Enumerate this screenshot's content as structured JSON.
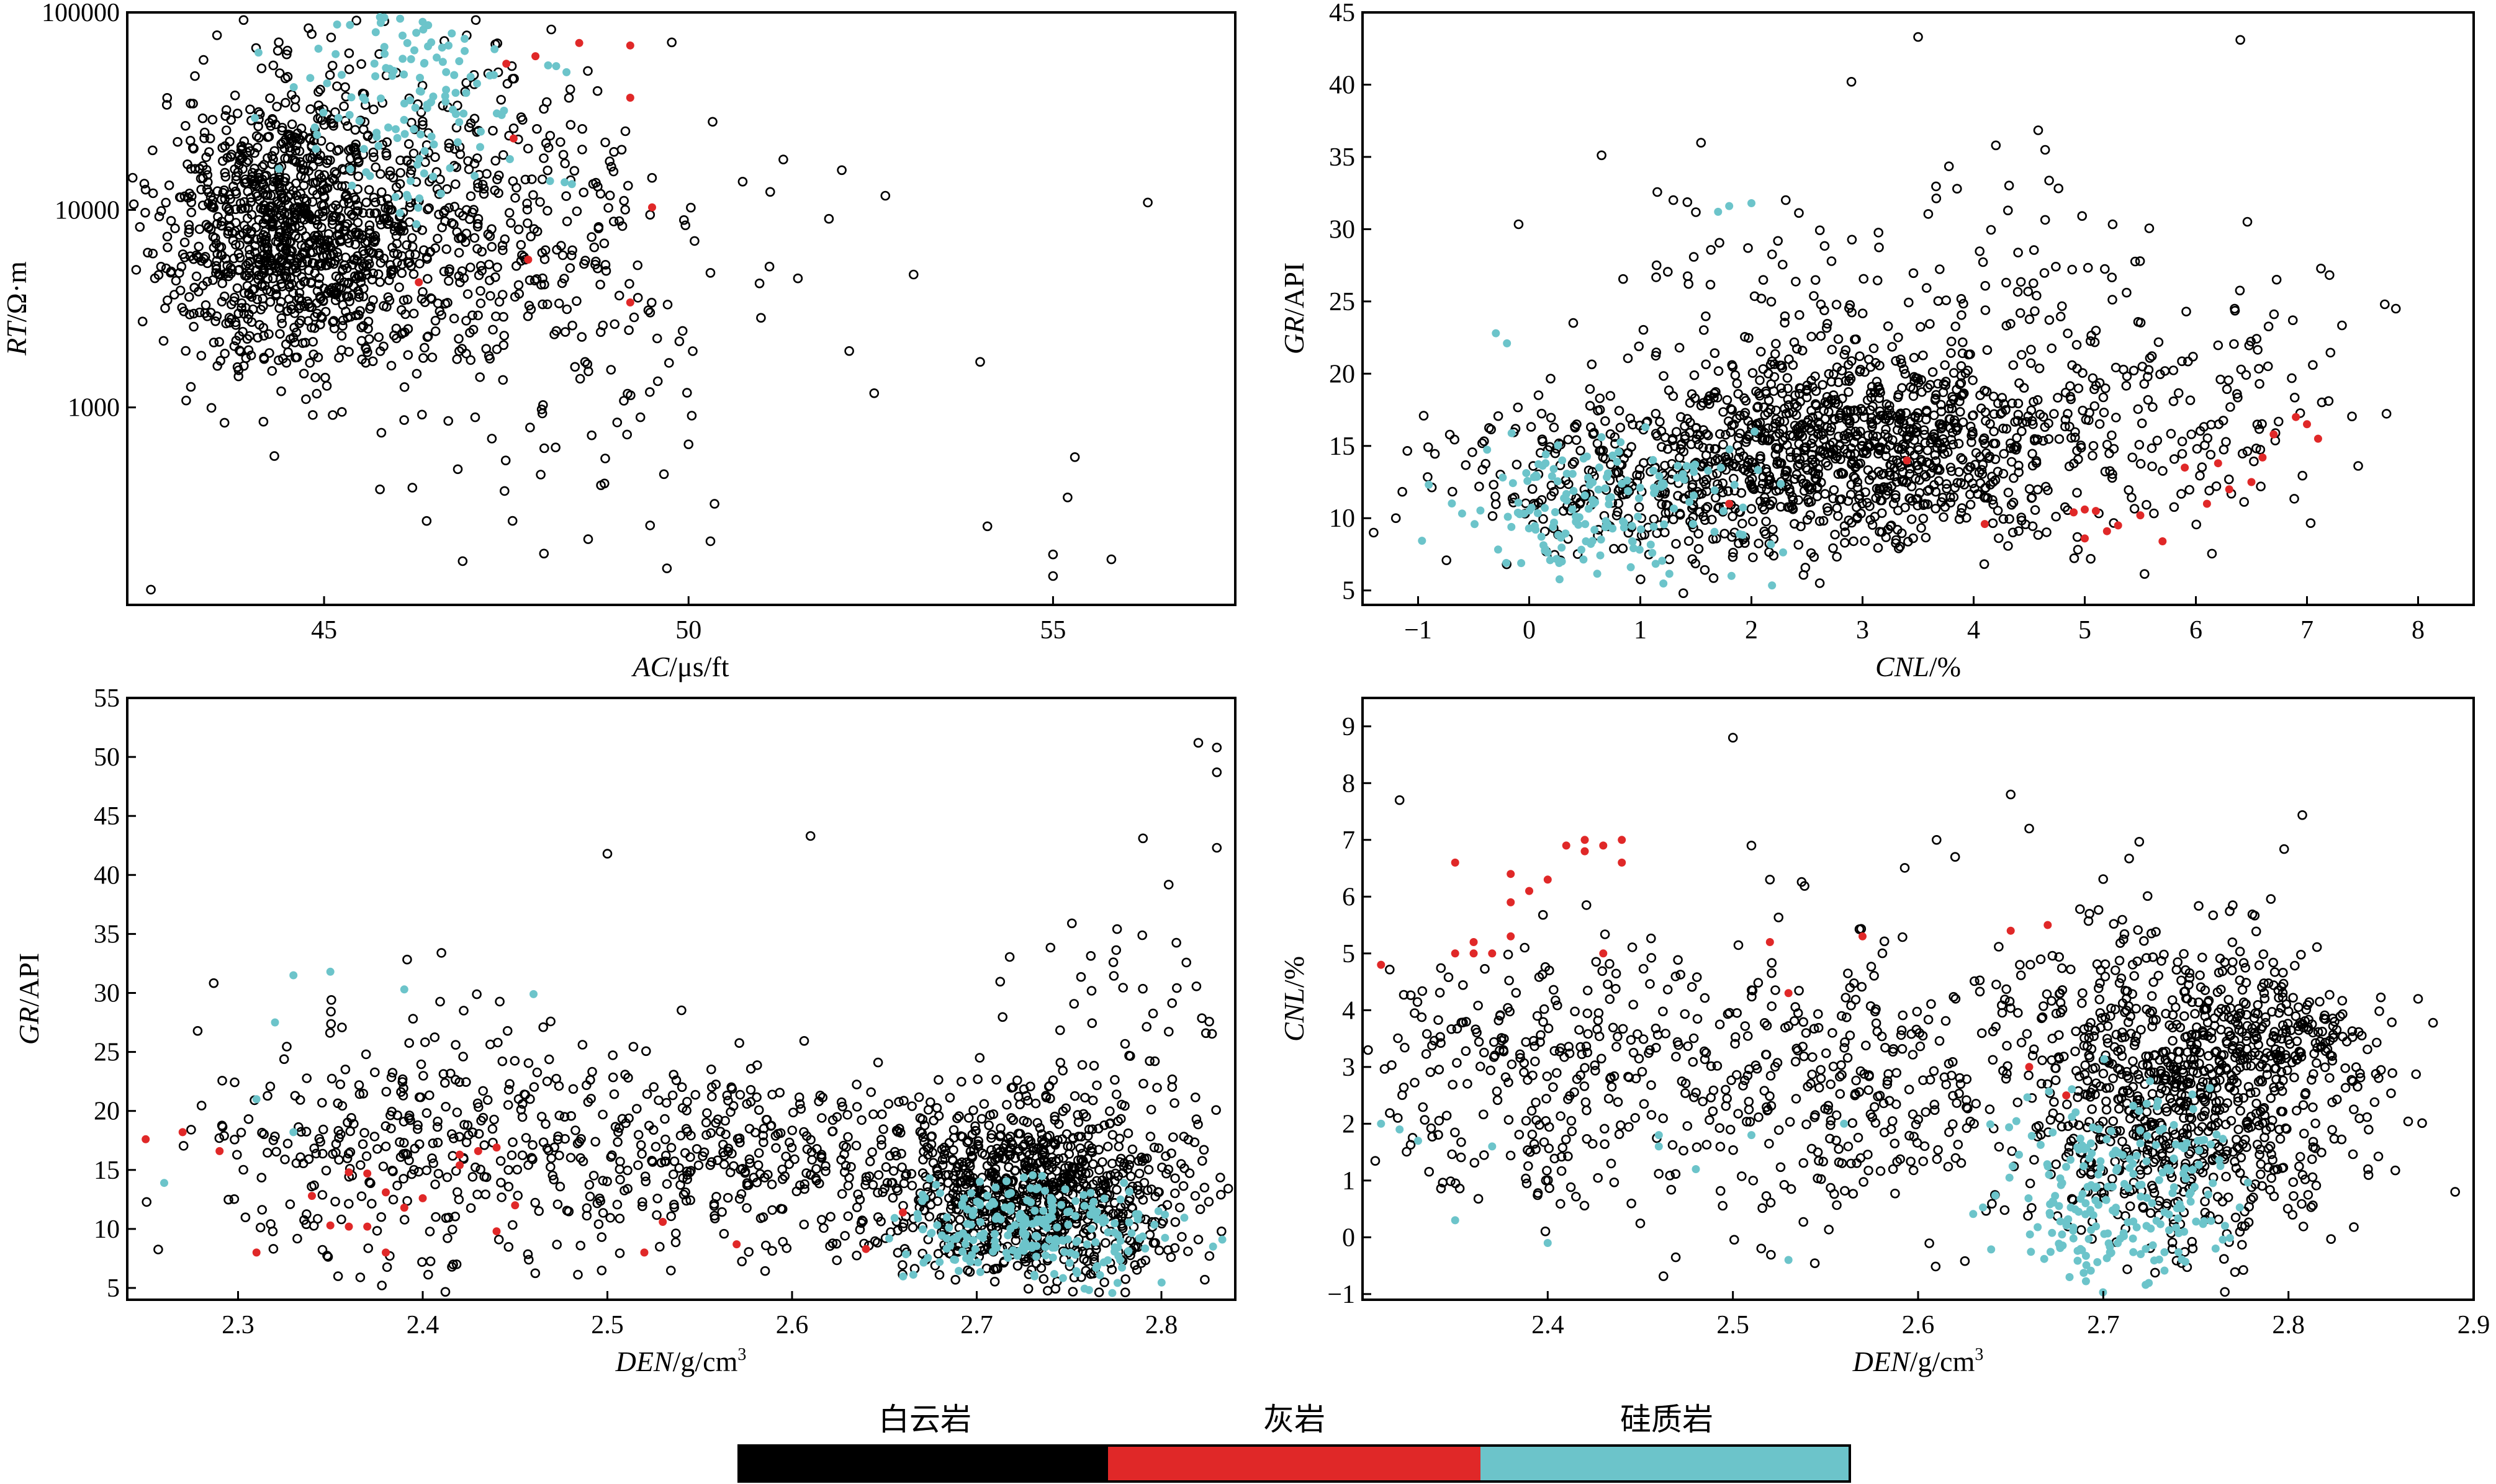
{
  "colors": {
    "dolomite": "#000000",
    "limestone": "#e02828",
    "siliceous": "#6cc4ca"
  },
  "legend": {
    "items": [
      {
        "label": "白云岩",
        "color": "#000000"
      },
      {
        "label": "灰岩",
        "color": "#e02828"
      },
      {
        "label": "硅质岩",
        "color": "#6cc4ca"
      }
    ]
  },
  "chart_data": [
    {
      "type": "scatter",
      "id": "rt_ac",
      "xlabel_italic": "AC",
      "xlabel_unit": "/μs/ft",
      "ylabel_italic": "RT",
      "ylabel_unit": "/Ω·m",
      "xlim": [
        42.3,
        57.5
      ],
      "ylim": [
        100,
        100000
      ],
      "yscale": "log",
      "xticks": [
        45,
        50,
        55
      ],
      "yticks": [
        1000,
        10000,
        100000
      ],
      "grid": false,
      "series": [
        {
          "key": "dolomite",
          "marker": "hollow",
          "clusters": [
            {
              "cx": 44.5,
              "cy": 8000,
              "sx": 0.9,
              "sy": 0.35,
              "n": 1050
            },
            {
              "cx": 46.8,
              "cy": 9000,
              "sx": 1.2,
              "sy": 0.45,
              "n": 380
            },
            {
              "cx": 48.5,
              "cy": 3000,
              "sx": 1.5,
              "sy": 0.5,
              "n": 130
            }
          ],
          "points": [
            [
              56.3,
              10900
            ],
            [
              52.7,
              11800
            ],
            [
              54.0,
              1700
            ],
            [
              54.1,
              250
            ],
            [
              55.3,
              560
            ],
            [
              55.2,
              350
            ],
            [
              55.0,
              180
            ],
            [
              55.8,
              170
            ],
            [
              55.0,
              140
            ],
            [
              51.5,
              4500
            ],
            [
              51.3,
              18000
            ],
            [
              50.3,
              4800
            ],
            [
              50.0,
              650
            ],
            [
              50.3,
              210
            ]
          ]
        },
        {
          "key": "limestone",
          "marker": "filled",
          "points": [
            [
              49.5,
              10300
            ],
            [
              49.2,
              3400
            ],
            [
              49.2,
              68000
            ],
            [
              49.2,
              37000
            ],
            [
              47.6,
              23000
            ],
            [
              47.5,
              55000
            ],
            [
              48.5,
              70000
            ],
            [
              46.3,
              4300
            ],
            [
              47.9,
              60000
            ],
            [
              47.8,
              5600
            ]
          ]
        },
        {
          "key": "siliceous",
          "marker": "filled",
          "clusters": [
            {
              "cx": 46.2,
              "cy": 40000,
              "sx": 0.8,
              "sy": 0.3,
              "n": 140
            }
          ],
          "points": [
            [
              48.3,
              13800
            ],
            [
              48.1,
              14000
            ],
            [
              48.4,
              13500
            ]
          ]
        }
      ]
    },
    {
      "type": "scatter",
      "id": "gr_cnl",
      "xlabel_italic": "CNL",
      "xlabel_unit": "/%",
      "ylabel_italic": "GR",
      "ylabel_unit": "/API",
      "xlim": [
        -1.5,
        8.5
      ],
      "ylim": [
        4,
        45
      ],
      "yscale": "linear",
      "xticks": [
        -1,
        0,
        1,
        2,
        3,
        4,
        5,
        6,
        7,
        8
      ],
      "yticks": [
        5,
        10,
        15,
        20,
        25,
        30,
        35,
        40,
        45
      ],
      "grid": false,
      "series": [
        {
          "key": "dolomite",
          "marker": "hollow",
          "clusters": [
            {
              "cx": 2.9,
              "cy": 15,
              "sx": 1.0,
              "sy": 3.5,
              "n": 900
            },
            {
              "cx": 1.2,
              "cy": 13,
              "sx": 1.0,
              "sy": 3.2,
              "n": 350
            },
            {
              "cx": 5.2,
              "cy": 17,
              "sx": 1.0,
              "sy": 4.5,
              "n": 230
            },
            {
              "cx": 3.4,
              "cy": 27,
              "sx": 1.4,
              "sy": 4.0,
              "n": 110
            }
          ],
          "points": [
            [
              -1.2,
              10
            ],
            [
              -1.4,
              9
            ],
            [
              7.8,
              24.5
            ],
            [
              7.7,
              24.8
            ],
            [
              3.5,
              43.3
            ],
            [
              6.4,
              43.1
            ],
            [
              4.2,
              35.8
            ],
            [
              2.9,
              40.2
            ]
          ]
        },
        {
          "key": "limestone",
          "marker": "filled",
          "points": [
            [
              7.0,
              16.5
            ],
            [
              7.1,
              15.5
            ],
            [
              6.9,
              17.0
            ],
            [
              6.7,
              15.8
            ],
            [
              6.6,
              14.2
            ],
            [
              6.3,
              12.0
            ],
            [
              6.1,
              11.0
            ],
            [
              5.9,
              13.5
            ],
            [
              5.5,
              10.2
            ],
            [
              5.3,
              9.5
            ],
            [
              5.1,
              10.5
            ],
            [
              5.0,
              10.6
            ],
            [
              4.9,
              10.4
            ],
            [
              5.0,
              8.6
            ],
            [
              5.2,
              9.1
            ],
            [
              5.7,
              8.4
            ],
            [
              6.5,
              12.5
            ],
            [
              4.1,
              9.6
            ],
            [
              3.4,
              14.0
            ],
            [
              1.8,
              11.0
            ],
            [
              6.2,
              13.8
            ]
          ]
        },
        {
          "key": "siliceous",
          "marker": "filled",
          "clusters": [
            {
              "cx": 0.5,
              "cy": 10.5,
              "sx": 0.5,
              "sy": 2.2,
              "n": 130
            },
            {
              "cx": 1.4,
              "cy": 11.5,
              "sx": 0.6,
              "sy": 2.5,
              "n": 40
            }
          ],
          "points": [
            [
              1.7,
              31.2
            ],
            [
              1.8,
              31.6
            ],
            [
              2.0,
              31.8
            ],
            [
              -0.3,
              22.8
            ],
            [
              -0.2,
              22.1
            ]
          ]
        }
      ]
    },
    {
      "type": "scatter",
      "id": "gr_den",
      "xlabel_italic": "DEN",
      "xlabel_unit": "/g/cm",
      "xlabel_sup": "3",
      "ylabel_italic": "GR",
      "ylabel_unit": "/API",
      "xlim": [
        2.24,
        2.84
      ],
      "ylim": [
        4,
        55
      ],
      "yscale": "linear",
      "xticks": [
        2.3,
        2.4,
        2.5,
        2.6,
        2.7,
        2.8
      ],
      "yticks": [
        5,
        10,
        15,
        20,
        25,
        30,
        35,
        40,
        45,
        50,
        55
      ],
      "grid": false,
      "series": [
        {
          "key": "dolomite",
          "marker": "hollow",
          "clusters": [
            {
              "cx": 2.73,
              "cy": 13,
              "sx": 0.04,
              "sy": 3.5,
              "n": 900
            },
            {
              "cx": 2.58,
              "cy": 16,
              "sx": 0.06,
              "sy": 4.0,
              "n": 350
            },
            {
              "cx": 2.4,
              "cy": 17,
              "sx": 0.06,
              "sy": 5.5,
              "n": 330
            },
            {
              "cx": 2.78,
              "cy": 24,
              "sx": 0.04,
              "sy": 7.0,
              "n": 80
            }
          ],
          "points": [
            [
              2.82,
              51.2
            ],
            [
              2.83,
              50.8
            ],
            [
              2.83,
              48.7
            ],
            [
              2.83,
              42.3
            ],
            [
              2.5,
              41.8
            ],
            [
              2.61,
              43.3
            ],
            [
              2.79,
              43.1
            ],
            [
              2.24,
              26.8
            ]
          ]
        },
        {
          "key": "limestone",
          "marker": "filled",
          "points": [
            [
              2.25,
              17.6
            ],
            [
              2.27,
              18.2
            ],
            [
              2.29,
              16.6
            ],
            [
              2.31,
              8.0
            ],
            [
              2.35,
              10.3
            ],
            [
              2.36,
              10.2
            ],
            [
              2.37,
              10.2
            ],
            [
              2.37,
              14.7
            ],
            [
              2.38,
              13.1
            ],
            [
              2.38,
              8.0
            ],
            [
              2.39,
              11.8
            ],
            [
              2.4,
              12.6
            ],
            [
              2.42,
              15.4
            ],
            [
              2.42,
              16.3
            ],
            [
              2.43,
              16.6
            ],
            [
              2.44,
              9.8
            ],
            [
              2.45,
              12.0
            ],
            [
              2.52,
              8.0
            ],
            [
              2.53,
              10.6
            ],
            [
              2.57,
              8.7
            ],
            [
              2.64,
              8.3
            ],
            [
              2.66,
              11.4
            ],
            [
              2.34,
              12.8
            ],
            [
              2.36,
              14.8
            ],
            [
              2.44,
              16.9
            ]
          ]
        },
        {
          "key": "siliceous",
          "marker": "filled",
          "clusters": [
            {
              "cx": 2.73,
              "cy": 10,
              "sx": 0.035,
              "sy": 2.2,
              "n": 230
            }
          ],
          "points": [
            [
              2.32,
              27.5
            ],
            [
              2.33,
              31.5
            ],
            [
              2.39,
              30.3
            ],
            [
              2.46,
              29.9
            ],
            [
              2.35,
              31.8
            ],
            [
              2.31,
              21.0
            ],
            [
              2.33,
              18.2
            ],
            [
              2.26,
              13.9
            ]
          ]
        }
      ]
    },
    {
      "type": "scatter",
      "id": "cnl_den",
      "xlabel_italic": "DEN",
      "xlabel_unit": "/g/cm",
      "xlabel_sup": "3",
      "ylabel_italic": "CNL",
      "ylabel_unit": "/%",
      "xlim": [
        2.3,
        2.9
      ],
      "ylim": [
        -1.1,
        9.5
      ],
      "yscale": "linear",
      "xticks": [
        2.4,
        2.5,
        2.6,
        2.7,
        2.8,
        2.9
      ],
      "yticks": [
        -1,
        0,
        1,
        2,
        3,
        4,
        5,
        6,
        7,
        8,
        9
      ],
      "grid": false,
      "series": [
        {
          "key": "dolomite",
          "marker": "hollow",
          "clusters": [
            {
              "cx": 2.74,
              "cy": 2.5,
              "sx": 0.045,
              "sy": 1.4,
              "n": 900
            },
            {
              "cx": 2.55,
              "cy": 2.6,
              "sx": 0.06,
              "sy": 1.2,
              "n": 330
            },
            {
              "cx": 2.39,
              "cy": 3.0,
              "sx": 0.05,
              "sy": 1.1,
              "n": 260
            },
            {
              "cx": 2.8,
              "cy": 3.5,
              "sx": 0.025,
              "sy": 0.4,
              "n": 120
            }
          ],
          "points": [
            [
              2.5,
              8.8
            ],
            [
              2.32,
              7.7
            ],
            [
              2.65,
              7.8
            ],
            [
              2.66,
              7.2
            ],
            [
              2.61,
              7.0
            ],
            [
              2.62,
              6.7
            ],
            [
              2.89,
              0.8
            ],
            [
              2.87,
              4.2
            ],
            [
              2.51,
              6.9
            ],
            [
              2.52,
              6.3
            ]
          ]
        },
        {
          "key": "limestone",
          "marker": "filled",
          "points": [
            [
              2.31,
              4.8
            ],
            [
              2.35,
              6.6
            ],
            [
              2.35,
              5.0
            ],
            [
              2.36,
              5.0
            ],
            [
              2.37,
              5.0
            ],
            [
              2.38,
              5.3
            ],
            [
              2.38,
              5.9
            ],
            [
              2.38,
              6.4
            ],
            [
              2.39,
              6.1
            ],
            [
              2.4,
              6.3
            ],
            [
              2.41,
              6.9
            ],
            [
              2.42,
              6.8
            ],
            [
              2.42,
              7.0
            ],
            [
              2.43,
              6.9
            ],
            [
              2.44,
              6.6
            ],
            [
              2.44,
              7.0
            ],
            [
              2.43,
              5.0
            ],
            [
              2.36,
              5.2
            ],
            [
              2.52,
              5.2
            ],
            [
              2.57,
              5.3
            ],
            [
              2.65,
              5.4
            ],
            [
              2.67,
              5.5
            ],
            [
              2.53,
              4.3
            ],
            [
              2.66,
              3.0
            ],
            [
              2.68,
              2.5
            ]
          ]
        },
        {
          "key": "siliceous",
          "marker": "filled",
          "clusters": [
            {
              "cx": 2.71,
              "cy": 0.8,
              "sx": 0.03,
              "sy": 0.8,
              "n": 230
            }
          ],
          "points": [
            [
              2.31,
              2.0
            ],
            [
              2.32,
              1.9
            ],
            [
              2.33,
              1.7
            ],
            [
              2.37,
              1.6
            ],
            [
              2.35,
              0.3
            ],
            [
              2.4,
              -0.1
            ],
            [
              2.46,
              1.8
            ],
            [
              2.48,
              1.2
            ],
            [
              2.51,
              1.8
            ],
            [
              2.53,
              -0.4
            ],
            [
              2.56,
              2.0
            ],
            [
              2.46,
              1.6
            ]
          ]
        }
      ]
    }
  ]
}
